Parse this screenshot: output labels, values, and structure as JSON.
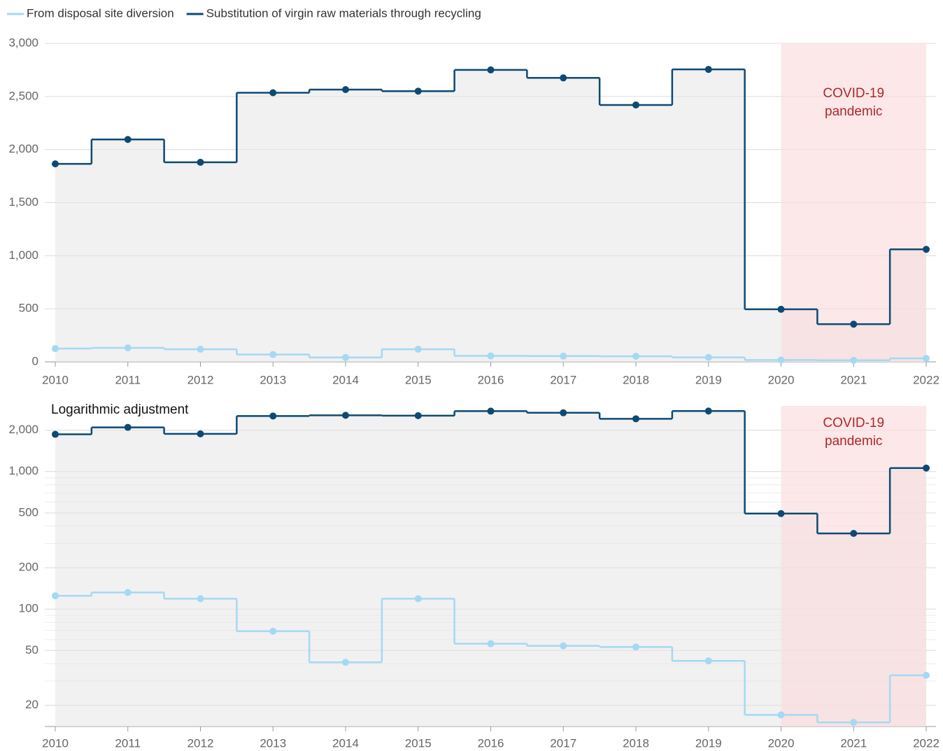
{
  "chart_data": [
    {
      "type": "step",
      "x": [
        2010,
        2011,
        2012,
        2013,
        2014,
        2015,
        2016,
        2017,
        2018,
        2019,
        2020,
        2021,
        2022
      ],
      "series": [
        {
          "name": "From disposal site diversion",
          "color": "#a6d8f3",
          "values": [
            125,
            132,
            119,
            69,
            41,
            119,
            56,
            54,
            53,
            42,
            17,
            15,
            33
          ]
        },
        {
          "name": "Substitution of virgin raw materials through recycling",
          "color": "#0d4a73",
          "values": [
            1865,
            2095,
            1880,
            2535,
            2565,
            2550,
            2750,
            2675,
            2420,
            2755,
            495,
            355,
            1060
          ]
        }
      ],
      "xlim": [
        2010,
        2022
      ],
      "xticks": [
        2010,
        2011,
        2012,
        2013,
        2014,
        2015,
        2016,
        2017,
        2018,
        2019,
        2020,
        2021,
        2022
      ],
      "ylim": [
        0,
        3000
      ],
      "yticks": [
        0,
        500,
        {
          "value": 1000,
          "label": "1,000"
        },
        {
          "value": 1500,
          "label": "1,500"
        },
        {
          "value": 2000,
          "label": "2,000"
        },
        {
          "value": 2500,
          "label": "2,500"
        },
        {
          "value": 3000,
          "label": "3,000"
        }
      ],
      "log_scale": false,
      "grid": true,
      "annotation": {
        "text": [
          "COVID-19",
          "pandemic"
        ],
        "x_range": [
          2020,
          2022
        ],
        "color": "#fbdcdc"
      }
    },
    {
      "type": "step",
      "title": "Logarithmic adjustment",
      "x": [
        2010,
        2011,
        2012,
        2013,
        2014,
        2015,
        2016,
        2017,
        2018,
        2019,
        2020,
        2021,
        2022
      ],
      "series": [
        {
          "color": "#a6d8f3",
          "values": [
            125,
            132,
            119,
            69,
            41,
            119,
            56,
            54,
            53,
            42,
            17,
            15,
            33
          ]
        },
        {
          "color": "#0d4a73",
          "values": [
            1865,
            2095,
            1880,
            2535,
            2565,
            2550,
            2750,
            2675,
            2420,
            2755,
            495,
            355,
            1060
          ]
        }
      ],
      "xlim": [
        2010,
        2022
      ],
      "xticks": [
        2010,
        2011,
        2012,
        2013,
        2014,
        2015,
        2016,
        2017,
        2018,
        2019,
        2020,
        2021,
        2022
      ],
      "ylim": [
        14,
        3000
      ],
      "yticks": [
        20,
        50,
        100,
        200,
        500,
        {
          "value": 1000,
          "label": "1,000"
        },
        {
          "value": 2000,
          "label": "2,000"
        }
      ],
      "log_scale": true,
      "grid": true,
      "annotation": {
        "text": [
          "COVID-19",
          "pandemic"
        ],
        "x_range": [
          2020,
          2022
        ],
        "color": "#fbdcdc"
      }
    }
  ]
}
